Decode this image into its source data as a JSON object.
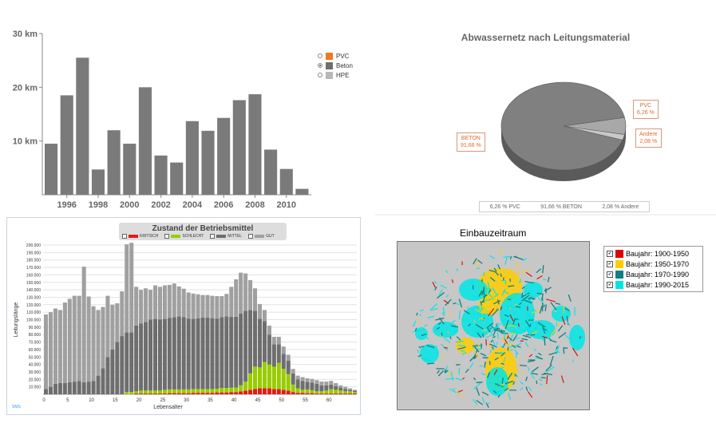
{
  "charts": [
    {
      "type": "bar",
      "y_ticks": [
        "10 km",
        "20 km",
        "30 km"
      ],
      "ylim": [
        0,
        30
      ],
      "x_labels": [
        "1996",
        "1998",
        "2000",
        "2002",
        "2004",
        "2006",
        "2008",
        "2010"
      ],
      "years": [
        1995,
        1996,
        1997,
        1998,
        1999,
        2000,
        2001,
        2002,
        2003,
        2004,
        2005,
        2006,
        2007,
        2008,
        2009,
        2010,
        2011
      ],
      "values": [
        9.5,
        18.5,
        25.5,
        4.7,
        12,
        9.5,
        20,
        7.3,
        6,
        13.7,
        11.9,
        14.3,
        17.6,
        18.7,
        8.4,
        4.8,
        1.1
      ],
      "bar_color": "#7a7a7a",
      "legend": [
        {
          "label": "PVC",
          "color": "#f07a1e",
          "selected": false
        },
        {
          "label": "Beton",
          "color": "#6e6e6e",
          "selected": true
        },
        {
          "label": "HPE",
          "color": "#b8b8b8",
          "selected": false
        }
      ]
    },
    {
      "type": "pie",
      "title": "Abwassernetz nach Leitungsmaterial",
      "slices": [
        {
          "label": "BETON",
          "value": 91.66,
          "display": "91,66 %",
          "color": "#808080"
        },
        {
          "label": "PVC",
          "value": 6.26,
          "display": "6,26 %",
          "color": "#a8a8a8"
        },
        {
          "label": "Andere",
          "value": 2.08,
          "display": "2,08 %",
          "color": "#c8c8c8"
        }
      ],
      "summary": [
        "6,26 %   PVC",
        "91,66 %   BETON",
        "2,08 %   Andere"
      ]
    },
    {
      "type": "bar",
      "title": "Zustand der Betriebsmittel",
      "xlabel": "Lebensalter",
      "ylabel": "Leitungslänge",
      "ylim": [
        0,
        200000
      ],
      "y_ticks": [
        "10.000",
        "20.000",
        "30.000",
        "40.000",
        "50.000",
        "60.000",
        "70.000",
        "80.000",
        "90.000",
        "100.000",
        "110.000",
        "120.000",
        "130.000",
        "140.000",
        "150.000",
        "160.000",
        "170.000",
        "180.000",
        "190.000",
        "200.000"
      ],
      "x_ticks": [
        "0",
        "5",
        "10",
        "15",
        "20",
        "25",
        "30",
        "35",
        "40",
        "45",
        "50",
        "55",
        "60"
      ],
      "legend": [
        {
          "label": "KRITISCH",
          "color": "#e41a1a"
        },
        {
          "label": "SCHLECHT",
          "color": "#99cc00"
        },
        {
          "label": "MITTEL",
          "color": "#6e6e6e"
        },
        {
          "label": "GUT",
          "color": "#a0a0a0"
        }
      ],
      "series": [
        {
          "name": "KRITISCH",
          "values": [
            0,
            0,
            0,
            0,
            0,
            0,
            0,
            0,
            0,
            0,
            0,
            0,
            0,
            0,
            0,
            0,
            0,
            0,
            0,
            1000,
            1000,
            1000,
            1000,
            1000,
            1000,
            1000,
            1500,
            1500,
            1500,
            1500,
            1500,
            2000,
            2000,
            2000,
            2000,
            2000,
            2500,
            2500,
            2500,
            3000,
            3000,
            4000,
            5000,
            6000,
            7000,
            8000,
            8000,
            8000,
            7000,
            7000,
            6000,
            5000,
            3000,
            2000,
            2000,
            1500,
            1500,
            1000,
            1000,
            1000,
            1000,
            1000,
            1000,
            1000,
            1000,
            1000
          ]
        },
        {
          "name": "SCHLECHT",
          "values": [
            0,
            0,
            0,
            0,
            0,
            0,
            0,
            0,
            0,
            0,
            0,
            0,
            0,
            0,
            0,
            0,
            0,
            3000,
            3000,
            3000,
            4000,
            4000,
            4000,
            4000,
            4000,
            5000,
            5000,
            5000,
            5000,
            5000,
            5000,
            5000,
            5000,
            5000,
            5000,
            5000,
            5000,
            6000,
            6000,
            6000,
            6000,
            8000,
            12000,
            22000,
            30000,
            28000,
            35000,
            32000,
            30000,
            35000,
            28000,
            22000,
            10000,
            6000,
            4000,
            5000,
            4000,
            3000,
            3000,
            4000,
            6000,
            5000,
            4000,
            3000,
            3000,
            2000
          ]
        },
        {
          "name": "MITTEL",
          "values": [
            7000,
            10000,
            14000,
            15000,
            15000,
            16000,
            17000,
            18000,
            16000,
            17000,
            18000,
            25000,
            35000,
            50000,
            60000,
            70000,
            78000,
            80000,
            80000,
            88000,
            90000,
            92000,
            95000,
            96000,
            95000,
            95000,
            96000,
            97000,
            98000,
            97000,
            95000,
            94000,
            95000,
            96000,
            96000,
            95000,
            94000,
            95000,
            96000,
            95000,
            95000,
            96000,
            95000,
            85000,
            75000,
            65000,
            55000,
            40000,
            30000,
            25000,
            20000,
            18000,
            15000,
            12000,
            12000,
            10000,
            10000,
            10000,
            8000,
            7000,
            6000,
            5000,
            4000,
            3000,
            2000,
            2000
          ]
        },
        {
          "name": "GUT",
          "values": [
            100000,
            100000,
            101000,
            98000,
            108000,
            112000,
            115000,
            114000,
            155000,
            114000,
            100000,
            88000,
            82000,
            82000,
            60000,
            52000,
            60000,
            118000,
            120000,
            52000,
            45000,
            45000,
            40000,
            45000,
            44000,
            45000,
            44000,
            45000,
            40000,
            38000,
            35000,
            34000,
            32000,
            30000,
            30000,
            30000,
            30000,
            28000,
            30000,
            40000,
            50000,
            55000,
            50000,
            40000,
            30000,
            20000,
            15000,
            12000,
            10000,
            10000,
            10000,
            8000,
            6000,
            5000,
            5000,
            5000,
            5000,
            5000,
            5000,
            5000,
            5000,
            4000,
            3000,
            3000,
            2000,
            1000
          ]
        }
      ]
    },
    {
      "type": "map",
      "title": "Einbauzeitraum",
      "legend": [
        {
          "label": "Baujahr: 1900-1950",
          "color": "#e00000"
        },
        {
          "label": "Baujahr: 1950-1970",
          "color": "#ffcc00"
        },
        {
          "label": "Baujahr: 1970-1990",
          "color": "#138080"
        },
        {
          "label": "Baujahr: 1990-2015",
          "color": "#00e5e5"
        }
      ]
    }
  ],
  "signature": "SMS"
}
